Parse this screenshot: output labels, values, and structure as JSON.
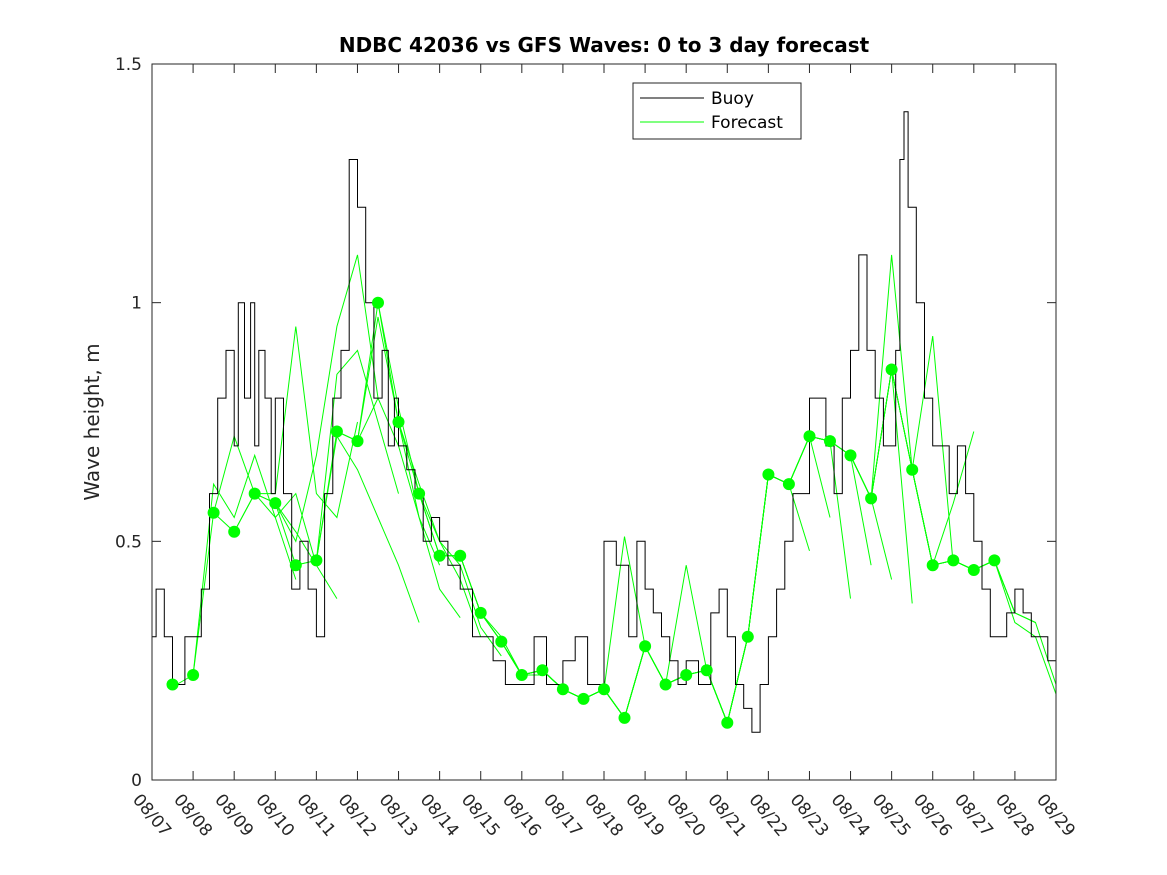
{
  "chart_data": {
    "type": "line",
    "title": "NDBC 42036 vs GFS Waves: 0 to 3 day forecast",
    "xlabel": "",
    "ylabel": "Wave height, m",
    "xlim": [
      0,
      22
    ],
    "ylim": [
      0,
      1.5
    ],
    "x_tick_labels": [
      "08/07",
      "08/08",
      "08/09",
      "08/10",
      "08/11",
      "08/12",
      "08/13",
      "08/14",
      "08/15",
      "08/16",
      "08/17",
      "08/18",
      "08/19",
      "08/20",
      "08/21",
      "08/22",
      "08/23",
      "08/24",
      "08/25",
      "08/26",
      "08/27",
      "08/28",
      "08/29"
    ],
    "y_tick_values": [
      0,
      0.5,
      1,
      1.5
    ],
    "y_tick_labels": [
      "0",
      "0.5",
      "1",
      "1.5"
    ],
    "legend": {
      "position": "top-center",
      "entries": [
        {
          "label": "Buoy",
          "color": "#000000"
        },
        {
          "label": "Forecast",
          "color": "#00ff00"
        }
      ]
    },
    "series": [
      {
        "name": "Buoy",
        "color": "#000000",
        "x": [
          0,
          0.1,
          0.3,
          0.5,
          0.8,
          1.0,
          1.2,
          1.4,
          1.6,
          1.8,
          2.0,
          2.1,
          2.25,
          2.4,
          2.5,
          2.6,
          2.75,
          2.9,
          3.0,
          3.2,
          3.4,
          3.6,
          3.8,
          4.0,
          4.2,
          4.4,
          4.6,
          4.8,
          5.0,
          5.2,
          5.4,
          5.6,
          5.75,
          5.9,
          6.0,
          6.2,
          6.4,
          6.6,
          6.8,
          7.0,
          7.2,
          7.5,
          7.8,
          8.0,
          8.3,
          8.6,
          9.0,
          9.3,
          9.6,
          10.0,
          10.3,
          10.6,
          11.0,
          11.3,
          11.6,
          11.8,
          12.0,
          12.2,
          12.4,
          12.6,
          12.8,
          13.0,
          13.3,
          13.6,
          13.8,
          14.0,
          14.2,
          14.4,
          14.6,
          14.8,
          15.0,
          15.2,
          15.4,
          15.6,
          15.8,
          16.0,
          16.2,
          16.4,
          16.6,
          16.8,
          17.0,
          17.2,
          17.4,
          17.6,
          17.8,
          18.0,
          18.1,
          18.2,
          18.3,
          18.4,
          18.6,
          18.8,
          19.0,
          19.2,
          19.4,
          19.6,
          19.8,
          20.0,
          20.2,
          20.4,
          20.6,
          20.8,
          21.0,
          21.2,
          21.4,
          21.6,
          21.8,
          22.0
        ],
        "values": [
          0.3,
          0.4,
          0.3,
          0.2,
          0.3,
          0.3,
          0.4,
          0.6,
          0.8,
          0.9,
          0.7,
          1.0,
          0.8,
          1.0,
          0.7,
          0.9,
          0.8,
          0.6,
          0.8,
          0.6,
          0.4,
          0.5,
          0.4,
          0.3,
          0.6,
          0.8,
          0.9,
          1.3,
          1.2,
          1.0,
          0.8,
          0.9,
          0.7,
          0.8,
          0.7,
          0.65,
          0.6,
          0.5,
          0.55,
          0.5,
          0.45,
          0.4,
          0.3,
          0.3,
          0.25,
          0.2,
          0.2,
          0.3,
          0.2,
          0.25,
          0.3,
          0.2,
          0.5,
          0.45,
          0.3,
          0.5,
          0.4,
          0.35,
          0.3,
          0.25,
          0.2,
          0.25,
          0.2,
          0.35,
          0.4,
          0.3,
          0.2,
          0.15,
          0.1,
          0.2,
          0.3,
          0.4,
          0.5,
          0.6,
          0.6,
          0.8,
          0.8,
          0.7,
          0.6,
          0.8,
          0.9,
          1.1,
          0.9,
          0.8,
          0.7,
          0.7,
          0.9,
          1.3,
          1.4,
          1.2,
          1.0,
          0.8,
          0.7,
          0.7,
          0.6,
          0.7,
          0.6,
          0.5,
          0.4,
          0.3,
          0.3,
          0.35,
          0.4,
          0.35,
          0.3,
          0.3,
          0.25,
          0.2
        ]
      }
    ],
    "forecast_runs": [
      {
        "x": [
          0.6,
          1.0,
          1.5,
          2.0,
          2.5,
          3.0,
          3.5
        ],
        "values": [
          0.2,
          0.22,
          0.62,
          0.55,
          0.68,
          0.55,
          0.42
        ]
      },
      {
        "x": [
          1.0,
          1.5,
          2.0,
          2.5,
          3.0,
          3.5,
          4.0
        ],
        "values": [
          0.22,
          0.56,
          0.72,
          0.6,
          0.55,
          0.6,
          0.45
        ]
      },
      {
        "x": [
          1.5,
          2.0,
          2.5,
          3.0,
          3.5,
          4.0,
          4.5
        ],
        "values": [
          0.56,
          0.52,
          0.6,
          0.58,
          0.52,
          0.45,
          0.38
        ]
      },
      {
        "x": [
          2.0,
          2.5,
          3.0,
          3.5,
          4.0,
          4.5,
          5.0
        ],
        "values": [
          0.52,
          0.6,
          0.6,
          0.95,
          0.6,
          0.55,
          0.75
        ]
      },
      {
        "x": [
          2.5,
          3.0,
          3.5,
          4.0,
          4.5,
          5.0,
          5.5
        ],
        "values": [
          0.6,
          0.58,
          0.5,
          0.68,
          0.95,
          1.1,
          0.8
        ]
      },
      {
        "x": [
          3.0,
          3.5,
          4.0,
          4.5,
          5.0,
          5.5,
          6.0
        ],
        "values": [
          0.58,
          0.45,
          0.46,
          0.85,
          0.9,
          0.75,
          0.6
        ]
      },
      {
        "x": [
          3.5,
          4.0,
          4.5,
          5.0,
          5.5,
          6.0,
          6.5
        ],
        "values": [
          0.45,
          0.46,
          0.72,
          0.65,
          0.55,
          0.45,
          0.33
        ]
      },
      {
        "x": [
          4.0,
          4.5,
          5.0,
          5.5,
          6.0,
          6.5,
          7.0
        ],
        "values": [
          0.46,
          0.73,
          0.71,
          0.97,
          0.75,
          0.55,
          0.45
        ]
      },
      {
        "x": [
          4.5,
          5.0,
          5.5,
          6.0,
          6.5,
          7.0,
          7.5
        ],
        "values": [
          0.73,
          0.71,
          0.8,
          0.7,
          0.55,
          0.4,
          0.34
        ]
      },
      {
        "x": [
          5.0,
          5.5,
          6.0,
          6.5,
          7.0,
          7.5,
          8.0
        ],
        "values": [
          0.71,
          1.0,
          0.78,
          0.6,
          0.5,
          0.42,
          0.3
        ]
      },
      {
        "x": [
          5.5,
          6.0,
          6.5,
          7.0,
          7.5,
          8.0,
          8.5
        ],
        "values": [
          1.0,
          0.75,
          0.62,
          0.5,
          0.45,
          0.32,
          0.26
        ]
      },
      {
        "x": [
          6.0,
          6.5,
          7.0,
          7.5,
          8.0,
          8.5,
          9.0
        ],
        "values": [
          0.75,
          0.6,
          0.47,
          0.47,
          0.35,
          0.3,
          0.22
        ]
      },
      {
        "x": [
          6.5,
          7.0,
          7.5,
          8.0,
          8.5,
          9.0,
          9.5
        ],
        "values": [
          0.6,
          0.47,
          0.47,
          0.35,
          0.29,
          0.22,
          0.22
        ]
      },
      {
        "x": [
          7.0,
          7.5,
          8.0,
          8.5,
          9.0,
          9.5,
          10.0
        ],
        "values": [
          0.47,
          0.47,
          0.35,
          0.29,
          0.22,
          0.23,
          0.19
        ]
      },
      {
        "x": [
          7.5,
          8.0,
          8.5,
          9.0,
          9.5,
          10.0,
          10.5
        ],
        "values": [
          0.47,
          0.35,
          0.29,
          0.22,
          0.23,
          0.19,
          0.17
        ]
      },
      {
        "x": [
          8.0,
          8.5,
          9.0,
          9.5,
          10.0,
          10.5,
          11.0
        ],
        "values": [
          0.35,
          0.29,
          0.22,
          0.23,
          0.19,
          0.17,
          0.19
        ]
      },
      {
        "x": [
          8.5,
          9.0,
          9.5,
          10.0,
          10.5,
          11.0,
          11.5
        ],
        "values": [
          0.29,
          0.22,
          0.23,
          0.19,
          0.17,
          0.19,
          0.13
        ]
      },
      {
        "x": [
          9.0,
          9.5,
          10.0,
          10.5,
          11.0,
          11.5,
          12.0
        ],
        "values": [
          0.22,
          0.23,
          0.19,
          0.17,
          0.19,
          0.13,
          0.28
        ]
      },
      {
        "x": [
          9.5,
          10.0,
          10.5,
          11.0,
          11.5,
          12.0,
          12.5
        ],
        "values": [
          0.23,
          0.19,
          0.17,
          0.19,
          0.13,
          0.28,
          0.2
        ]
      },
      {
        "x": [
          10.0,
          10.5,
          11.0,
          11.5,
          12.0,
          12.5,
          13.0
        ],
        "values": [
          0.19,
          0.17,
          0.19,
          0.51,
          0.28,
          0.2,
          0.22
        ]
      },
      {
        "x": [
          10.5,
          11.0,
          11.5,
          12.0,
          12.5,
          13.0,
          13.5
        ],
        "values": [
          0.17,
          0.19,
          0.13,
          0.28,
          0.2,
          0.22,
          0.23
        ]
      },
      {
        "x": [
          11.0,
          11.5,
          12.0,
          12.5,
          13.0,
          13.5,
          14.0
        ],
        "values": [
          0.19,
          0.13,
          0.28,
          0.2,
          0.45,
          0.23,
          0.12
        ]
      },
      {
        "x": [
          11.5,
          12.0,
          12.5,
          13.0,
          13.5,
          14.0,
          14.5
        ],
        "values": [
          0.13,
          0.28,
          0.2,
          0.22,
          0.23,
          0.12,
          0.3
        ]
      },
      {
        "x": [
          12.0,
          12.5,
          13.0,
          13.5,
          14.0,
          14.5,
          15.0
        ],
        "values": [
          0.28,
          0.2,
          0.22,
          0.23,
          0.12,
          0.3,
          0.64
        ]
      },
      {
        "x": [
          12.5,
          13.0,
          13.5,
          14.0,
          14.5,
          15.0,
          15.5
        ],
        "values": [
          0.2,
          0.22,
          0.23,
          0.12,
          0.3,
          0.64,
          0.62
        ]
      },
      {
        "x": [
          13.0,
          13.5,
          14.0,
          14.5,
          15.0,
          15.5,
          16.0
        ],
        "values": [
          0.22,
          0.23,
          0.12,
          0.3,
          0.64,
          0.62,
          0.48
        ]
      },
      {
        "x": [
          13.5,
          14.0,
          14.5,
          15.0,
          15.5,
          16.0,
          16.5
        ],
        "values": [
          0.23,
          0.12,
          0.3,
          0.64,
          0.62,
          0.72,
          0.55
        ]
      },
      {
        "x": [
          14.0,
          14.5,
          15.0,
          15.5,
          16.0,
          16.5,
          17.0
        ],
        "values": [
          0.12,
          0.3,
          0.64,
          0.62,
          0.72,
          0.71,
          0.38
        ]
      },
      {
        "x": [
          14.5,
          15.0,
          15.5,
          16.0,
          16.5,
          17.0,
          17.5
        ],
        "values": [
          0.3,
          0.64,
          0.62,
          0.72,
          0.71,
          0.68,
          0.45
        ]
      },
      {
        "x": [
          15.0,
          15.5,
          16.0,
          16.5,
          17.0,
          17.5,
          18.0
        ],
        "values": [
          0.64,
          0.62,
          0.72,
          0.71,
          0.68,
          0.59,
          0.42
        ]
      },
      {
        "x": [
          15.5,
          16.0,
          16.5,
          17.0,
          17.5,
          18.0,
          18.5
        ],
        "values": [
          0.62,
          0.72,
          0.71,
          0.68,
          0.59,
          0.86,
          0.37
        ]
      },
      {
        "x": [
          16.0,
          16.5,
          17.0,
          17.5,
          18.0,
          18.5,
          19.0
        ],
        "values": [
          0.72,
          0.71,
          0.68,
          0.59,
          1.1,
          0.65,
          0.45
        ]
      },
      {
        "x": [
          16.5,
          17.0,
          17.5,
          18.0,
          18.5,
          19.0,
          19.5
        ],
        "values": [
          0.71,
          0.68,
          0.59,
          0.86,
          0.65,
          0.93,
          0.45
        ]
      },
      {
        "x": [
          17.0,
          17.5,
          18.0,
          18.5,
          19.0,
          19.5,
          20.0
        ],
        "values": [
          0.68,
          0.59,
          0.86,
          0.65,
          0.45,
          0.58,
          0.73
        ]
      },
      {
        "x": [
          17.5,
          18.0,
          18.5,
          19.0,
          19.5,
          20.0,
          20.5
        ],
        "values": [
          0.59,
          0.86,
          0.65,
          0.45,
          0.46,
          0.44,
          0.46
        ]
      },
      {
        "x": [
          18.0,
          18.5,
          19.0,
          19.5,
          20.0,
          20.5,
          21.0
        ],
        "values": [
          0.86,
          0.65,
          0.45,
          0.46,
          0.44,
          0.46,
          0.35
        ]
      },
      {
        "x": [
          18.5,
          19.0,
          19.5,
          20.0,
          20.5,
          21.0,
          21.5
        ],
        "values": [
          0.65,
          0.45,
          0.46,
          0.44,
          0.46,
          0.35,
          0.33
        ]
      },
      {
        "x": [
          19.0,
          19.5,
          20.0,
          20.5,
          21.0,
          21.5,
          22.0
        ],
        "values": [
          0.45,
          0.46,
          0.44,
          0.46,
          0.35,
          0.33,
          0.2
        ]
      },
      {
        "x": [
          19.5,
          20.0,
          20.5,
          21.0,
          21.5,
          22.0
        ],
        "values": [
          0.46,
          0.44,
          0.46,
          0.33,
          0.3,
          0.18
        ]
      }
    ],
    "forecast_analysis_points": {
      "name": "Forecast",
      "color": "#00ff00",
      "x": [
        0.5,
        1.0,
        1.5,
        2.0,
        2.5,
        3.0,
        3.5,
        4.0,
        4.5,
        5.0,
        5.5,
        6.0,
        6.5,
        7.0,
        7.5,
        8.0,
        8.5,
        9.0,
        9.5,
        10.0,
        10.5,
        11.0,
        11.5,
        12.0,
        12.5,
        13.0,
        13.5,
        14.0,
        14.5,
        15.0,
        15.5,
        16.0,
        16.5,
        17.0,
        17.5,
        18.0,
        18.5,
        19.0,
        19.5,
        20.0,
        20.5
      ],
      "values": [
        0.2,
        0.22,
        0.56,
        0.52,
        0.6,
        0.58,
        0.45,
        0.46,
        0.73,
        0.71,
        1.0,
        0.75,
        0.6,
        0.47,
        0.47,
        0.35,
        0.29,
        0.22,
        0.23,
        0.19,
        0.17,
        0.19,
        0.13,
        0.28,
        0.2,
        0.22,
        0.23,
        0.12,
        0.3,
        0.64,
        0.62,
        0.72,
        0.71,
        0.68,
        0.59,
        0.86,
        0.65,
        0.45,
        0.46,
        0.44,
        0.46
      ]
    }
  }
}
